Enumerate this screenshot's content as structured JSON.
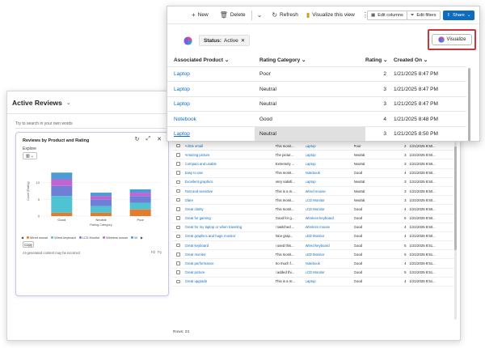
{
  "colors": {
    "accent": "#0f6cbd",
    "highlight_outline": "#d13438",
    "wired_mouse": "#e87a2b",
    "wired_keyboard": "#4fc3d4",
    "lcd_monitor": "#6f7fd8",
    "wireless_mouse": "#c264d0",
    "w": "#4a9bd6"
  },
  "front": {
    "toolbar": {
      "new_label": "New",
      "delete_label": "Delete",
      "refresh_label": "Refresh",
      "visualize_view_label": "Visualize this view",
      "edit_columns_label": "Edit columns",
      "edit_filters_label": "Edit filters",
      "share_label": "Share"
    },
    "filter": {
      "key": "Status:",
      "value": "Active"
    },
    "visualize_label": "Visualize",
    "columns": {
      "product": "Associated Product",
      "category": "Rating Category",
      "rating": "Rating",
      "created": "Created On"
    },
    "rows": [
      {
        "product": "Laptop",
        "category": "Poor",
        "rating": "2",
        "created": "1/21/2025 8:47 PM"
      },
      {
        "product": "Laptop",
        "category": "Neutral",
        "rating": "3",
        "created": "1/21/2025 8:47 PM"
      },
      {
        "product": "Laptop",
        "category": "Neutral",
        "rating": "3",
        "created": "1/21/2025 8:47 PM"
      },
      {
        "product": "Notebook",
        "category": "Good",
        "rating": "4",
        "created": "1/21/2025 8:48 PM"
      },
      {
        "product": "Laptop",
        "category": "Neutral",
        "rating": "3",
        "created": "1/21/2025 8:50 PM"
      }
    ]
  },
  "back": {
    "title": "Active Reviews",
    "search_placeholder": "Try to search in your own words",
    "chart_card": {
      "title": "Reviews by Product and Rating",
      "explore_label": "Explore",
      "copy_label": "Copy",
      "disclaimer": "AI-generated content may be incorrect"
    },
    "rows": [
      {
        "title": "A little small",
        "text": "This monit...",
        "product": "Laptop",
        "category": "Poor",
        "rating": "2",
        "created": "1/21/2025 8:50..."
      },
      {
        "title": "Amazing picture",
        "text": "The pictur...",
        "product": "Laptop",
        "category": "Neutral",
        "rating": "3",
        "created": "1/21/2025 8:50..."
      },
      {
        "title": "Compact and usable",
        "text": "Extremely ...",
        "product": "Laptop",
        "category": "Neutral",
        "rating": "3",
        "created": "1/21/2025 8:50..."
      },
      {
        "title": "Easy to use",
        "text": "This monit...",
        "product": "Notebook",
        "category": "Good",
        "rating": "4",
        "created": "1/21/2025 8:50..."
      },
      {
        "title": "Excellent graphics",
        "text": "Very satisfi...",
        "product": "Laptop",
        "category": "Neutral",
        "rating": "3",
        "created": "1/21/2025 8:50..."
      },
      {
        "title": "Fast and sensitive",
        "text": "This is a m...",
        "product": "Wired mouse",
        "category": "Neutral",
        "rating": "3",
        "created": "1/21/2025 8:50..."
      },
      {
        "title": "Glare",
        "text": "This monit...",
        "product": "LCD Monitor",
        "category": "Neutral",
        "rating": "3",
        "created": "1/21/2025 8:50..."
      },
      {
        "title": "Great clarity",
        "text": "This monit...",
        "product": "LCD Monitor",
        "category": "Good",
        "rating": "4",
        "created": "1/21/2025 8:50..."
      },
      {
        "title": "Great for gaming",
        "text": "Good for g...",
        "product": "Wireless keyboard",
        "category": "Good",
        "rating": "5",
        "created": "1/21/2025 8:50..."
      },
      {
        "title": "Great for my laptop or when traveling",
        "text": "I switched ...",
        "product": "Wireless mouse",
        "category": "Good",
        "rating": "4",
        "created": "1/21/2025 8:50..."
      },
      {
        "title": "Great graphics and huge monitor",
        "text": "Nice grap...",
        "product": "LED Monitor",
        "category": "Good",
        "rating": "4",
        "created": "1/21/2025 8:50..."
      },
      {
        "title": "Great keyboard",
        "text": "I used this...",
        "product": "Wired keyboard",
        "category": "Good",
        "rating": "5",
        "created": "1/21/2025 8:51..."
      },
      {
        "title": "Great monitor",
        "text": "This monit...",
        "product": "LED Monitor",
        "category": "Good",
        "rating": "5",
        "created": "1/21/2025 8:51..."
      },
      {
        "title": "Great performance",
        "text": "So much f...",
        "product": "Notebook",
        "category": "Good",
        "rating": "4",
        "created": "1/21/2025 8:51..."
      },
      {
        "title": "Great picture",
        "text": "I added thi...",
        "product": "LCD Monitor",
        "category": "Good",
        "rating": "5",
        "created": "1/21/2025 8:51..."
      },
      {
        "title": "Great upgrade",
        "text": "This is a m...",
        "product": "Laptop",
        "category": "Good",
        "rating": "4",
        "created": "1/21/2025 8:51..."
      }
    ],
    "rows_count": "Rows: 23"
  },
  "chart_data": {
    "type": "bar",
    "stacked": true,
    "categories": [
      "Good",
      "Neutral",
      "Poor"
    ],
    "xlabel": "Rating Category",
    "ylabel": "Count (Rating)",
    "ylim": [
      0,
      15
    ],
    "yticks": [
      0,
      5,
      10
    ],
    "legend_position": "bottom",
    "series": [
      {
        "name": "Wired mouse",
        "values": [
          1,
          1,
          2
        ]
      },
      {
        "name": "Wired keyboard",
        "values": [
          5,
          2,
          2
        ]
      },
      {
        "name": "LCD Monitor",
        "values": [
          3,
          2,
          2
        ]
      },
      {
        "name": "Wireless mouse",
        "values": [
          2,
          1,
          1
        ]
      },
      {
        "name": "W",
        "values": [
          2,
          1,
          1
        ]
      }
    ]
  }
}
